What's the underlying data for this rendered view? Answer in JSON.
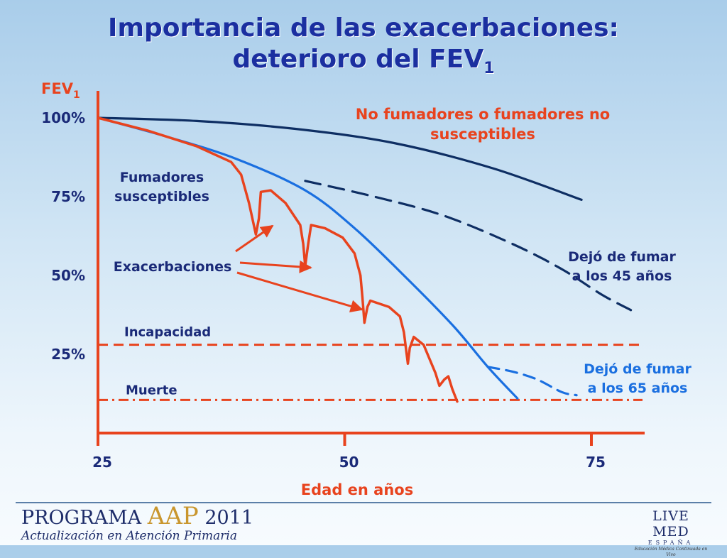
{
  "title": {
    "line1": "Importancia de las exacerbaciones:",
    "line2_main": "deterioro del  FEV",
    "line2_sub": "1"
  },
  "chart_data": {
    "type": "line",
    "xlabel": "Edad en años",
    "ylabel_main": "FEV",
    "ylabel_sub": "1",
    "xlim": [
      25,
      80
    ],
    "ylim": [
      0,
      110
    ],
    "x_ticks": [
      25,
      50,
      75
    ],
    "x_tick_labels": [
      "25",
      "50",
      "75"
    ],
    "y_ticks": [
      100,
      75,
      50,
      25
    ],
    "y_tick_labels": [
      "100%",
      "75%",
      "50%",
      "25%"
    ],
    "series": [
      {
        "key": "nonsmokers",
        "color": "#0e2e63",
        "style": "solid",
        "label_lines": [
          "No fumadores o fumadores no",
          "susceptibles"
        ],
        "label_color": "#e8431e",
        "points": [
          [
            25,
            100
          ],
          [
            35,
            99
          ],
          [
            45,
            96.5
          ],
          [
            55,
            92
          ],
          [
            65,
            84
          ],
          [
            74,
            74
          ]
        ]
      },
      {
        "key": "susceptible",
        "color": "#1a6fe0",
        "style": "solid",
        "label_lines": [
          "Fumadores",
          "susceptibles"
        ],
        "label_color": "#1a2a78",
        "points": [
          [
            25,
            100
          ],
          [
            32,
            94
          ],
          [
            39,
            87
          ],
          [
            46,
            77
          ],
          [
            51,
            65
          ],
          [
            56,
            50
          ],
          [
            61,
            34
          ],
          [
            64.5,
            21
          ],
          [
            67.5,
            11
          ]
        ]
      },
      {
        "key": "quit45",
        "color": "#0e2e63",
        "style": "dashed",
        "label_lines": [
          "Dejó de fumar",
          "a los 45 años"
        ],
        "label_color": "#1a2a78",
        "points": [
          [
            46,
            80
          ],
          [
            53,
            75
          ],
          [
            60,
            69
          ],
          [
            67,
            60
          ],
          [
            72,
            52
          ],
          [
            76,
            44
          ],
          [
            79,
            39
          ]
        ]
      },
      {
        "key": "quit65",
        "color": "#1a6fe0",
        "style": "dashed",
        "label_lines": [
          "Dejó de fumar",
          "a los 65 años"
        ],
        "label_color": "#1a6fe0",
        "points": [
          [
            64.5,
            21
          ],
          [
            67,
            19.5
          ],
          [
            69.5,
            17
          ],
          [
            72,
            13
          ],
          [
            73.5,
            12
          ]
        ]
      },
      {
        "key": "exacerbations",
        "color": "#e8431e",
        "style": "solid",
        "label_lines": [
          "Exacerbaciones"
        ],
        "label_color": "#1a2a78",
        "points": [
          [
            25,
            100
          ],
          [
            30,
            96
          ],
          [
            35,
            91
          ],
          [
            38.5,
            86
          ],
          [
            39.5,
            82
          ],
          [
            40.3,
            73
          ],
          [
            41,
            63
          ],
          [
            41.3,
            68
          ],
          [
            41.5,
            76.5
          ],
          [
            42.5,
            77
          ],
          [
            44,
            73
          ],
          [
            45.5,
            66
          ],
          [
            45.8,
            60
          ],
          [
            46,
            53
          ],
          [
            46.3,
            60
          ],
          [
            46.6,
            66
          ],
          [
            48,
            65
          ],
          [
            49.8,
            62
          ],
          [
            51,
            57
          ],
          [
            51.6,
            50
          ],
          [
            51.8,
            43
          ],
          [
            52,
            35
          ],
          [
            52.3,
            40
          ],
          [
            52.6,
            42
          ],
          [
            54.5,
            40
          ],
          [
            55.6,
            37
          ],
          [
            56,
            32
          ],
          [
            56.2,
            27
          ],
          [
            56.4,
            22
          ],
          [
            56.6,
            27
          ],
          [
            57,
            30.5
          ],
          [
            58,
            28
          ],
          [
            59.2,
            19
          ],
          [
            59.6,
            15
          ],
          [
            60.1,
            17
          ],
          [
            60.5,
            18
          ],
          [
            60.9,
            14
          ],
          [
            61.4,
            10
          ]
        ]
      }
    ],
    "thresholds": [
      {
        "key": "incapacidad",
        "label": "Incapacidad",
        "value": 28,
        "color": "#e8431e",
        "style": "dashed"
      },
      {
        "key": "muerte",
        "label": "Muerte",
        "value": 10.5,
        "color": "#e8431e",
        "style": "dashdot"
      }
    ],
    "grid": false,
    "legend": "none"
  },
  "footer": {
    "program_prefix": "PROGRAMA",
    "program_acronym": "AAP",
    "program_year": "2011",
    "program_subtitle": "Actualización en Atención Primaria",
    "sponsor_name": "LIVE MED",
    "sponsor_country": "ESPAÑA",
    "sponsor_tagline": "Educación Médica Continuada en Vivo"
  }
}
